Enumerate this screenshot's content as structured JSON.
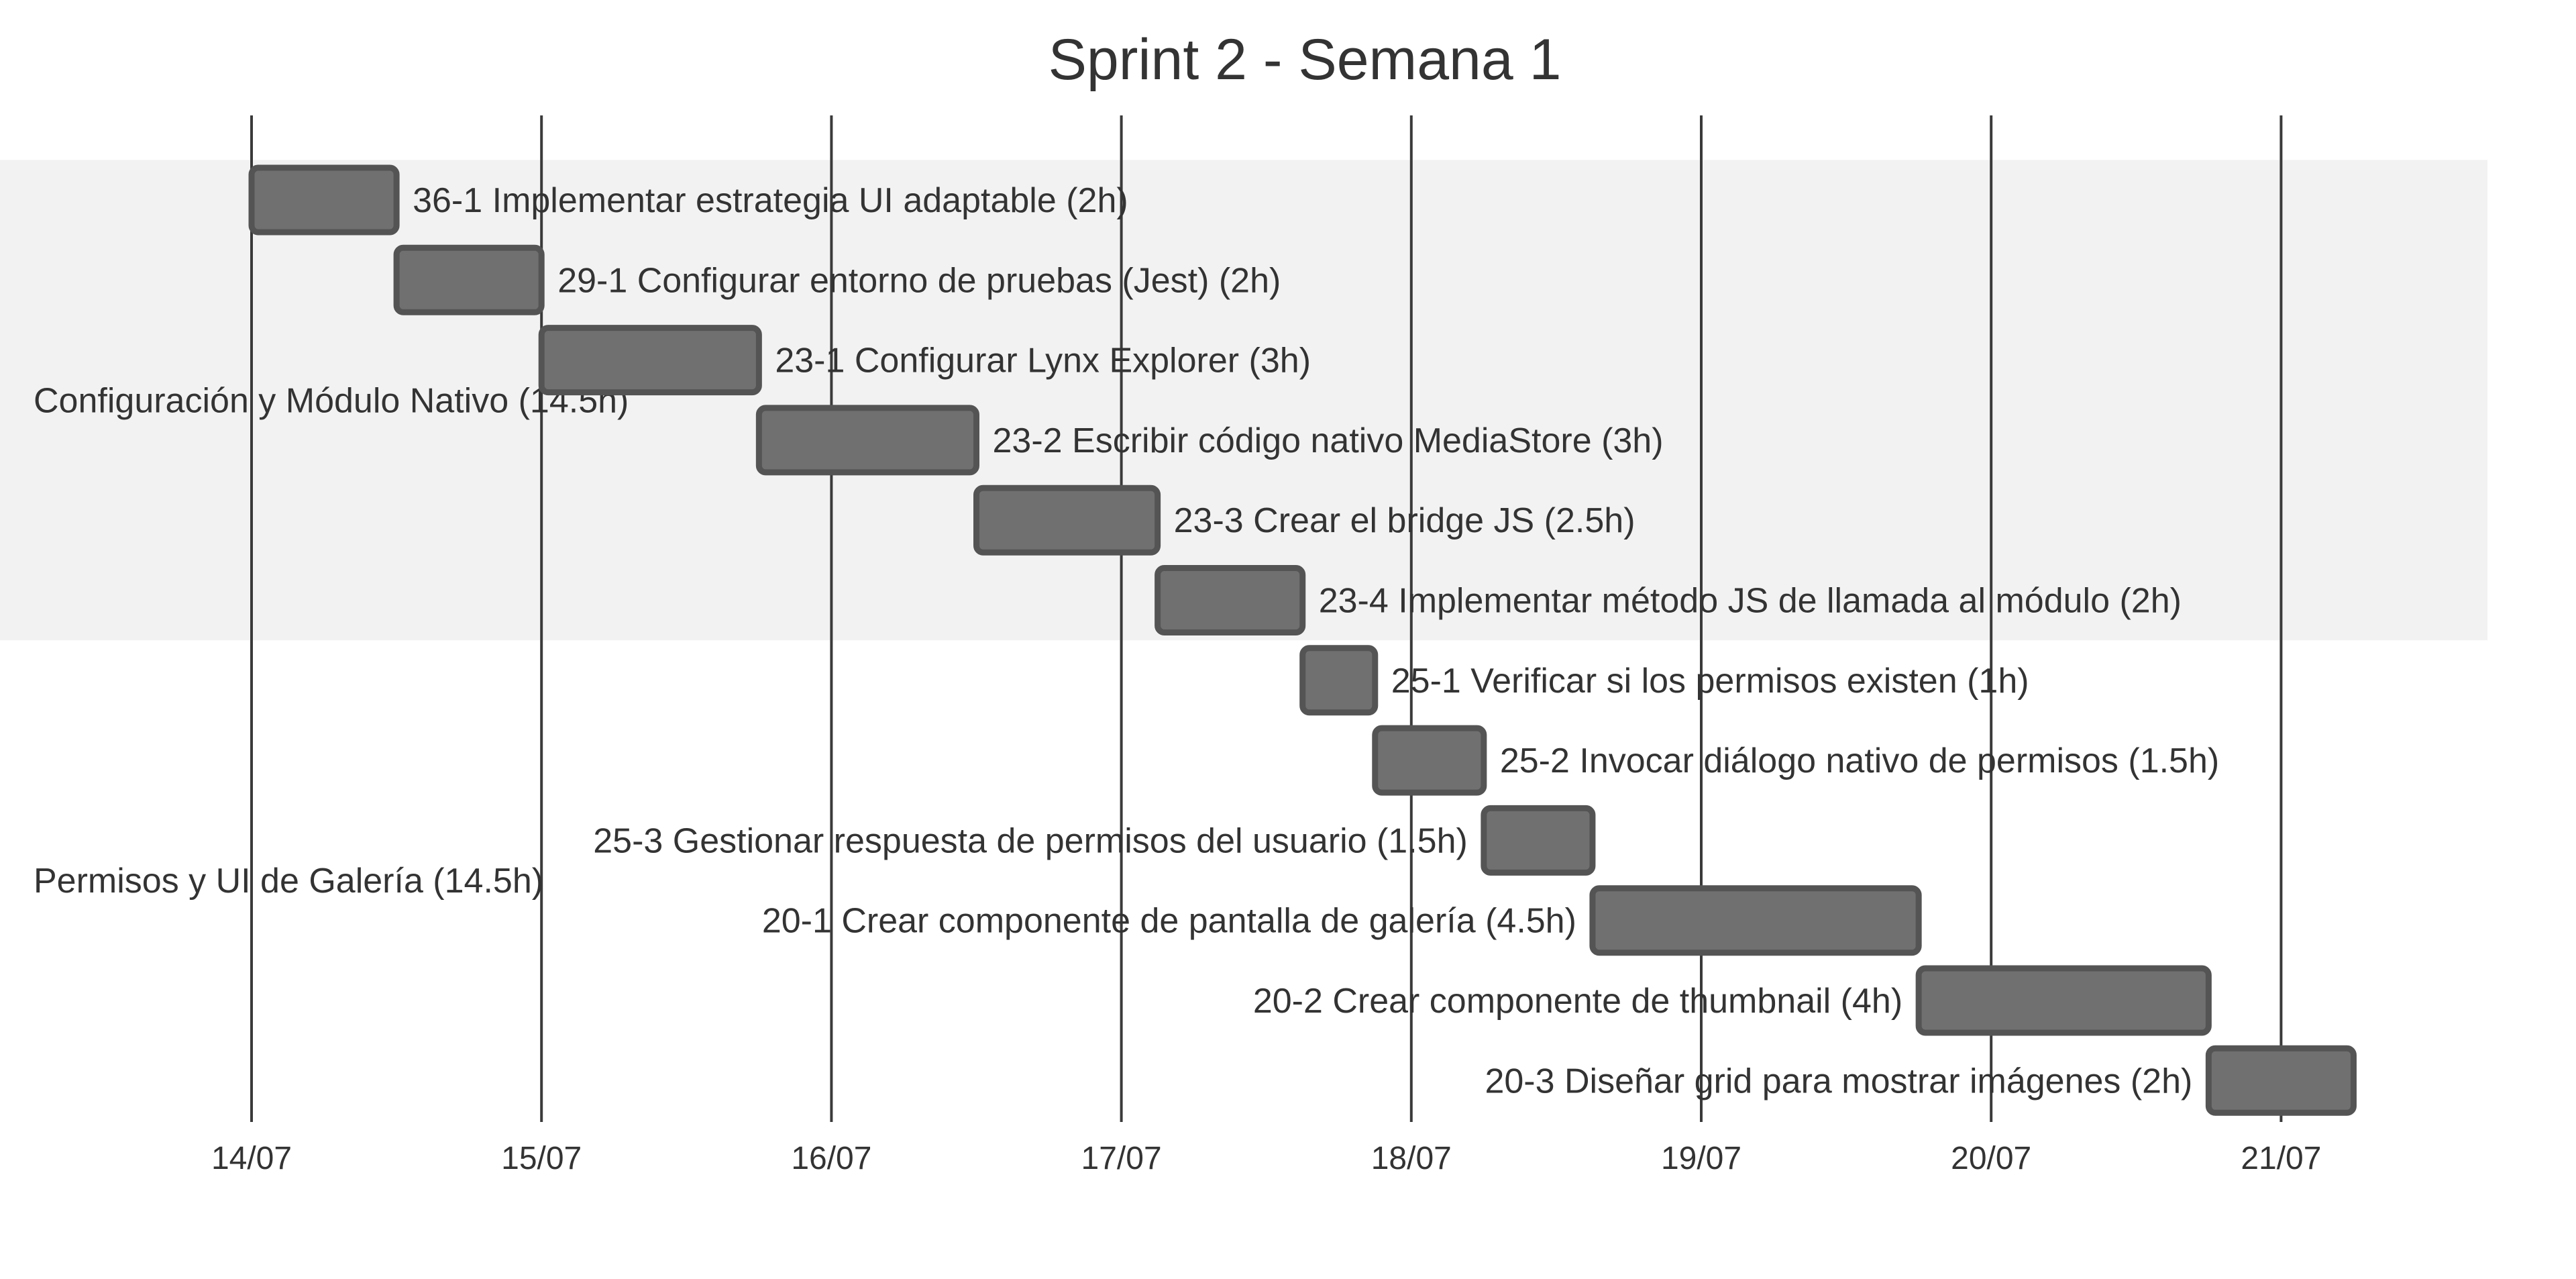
{
  "chart_data": {
    "type": "gantt",
    "title": "Sprint 2 - Semana 1",
    "x_axis": {
      "tick_labels": [
        "14/07",
        "15/07",
        "16/07",
        "17/07",
        "18/07",
        "19/07",
        "20/07",
        "21/07"
      ]
    },
    "sections": [
      {
        "label": "Configuración y Módulo Nativo (14.5h)"
      },
      {
        "label": "Permisos y UI de Galería (14.5h)"
      }
    ],
    "tasks": [
      {
        "section": 0,
        "label": "36-1 Implementar estrategia UI adaptable (2h)",
        "start": 0.0,
        "end": 0.5,
        "label_side": "right"
      },
      {
        "section": 0,
        "label": "29-1 Configurar entorno de pruebas (Jest) (2h)",
        "start": 0.5,
        "end": 1.0,
        "label_side": "right"
      },
      {
        "section": 0,
        "label": "23-1 Configurar Lynx Explorer (3h)",
        "start": 1.0,
        "end": 1.75,
        "label_side": "right"
      },
      {
        "section": 0,
        "label": "23-2 Escribir código nativo MediaStore (3h)",
        "start": 1.75,
        "end": 2.5,
        "label_side": "right"
      },
      {
        "section": 0,
        "label": "23-3 Crear el bridge JS (2.5h)",
        "start": 2.5,
        "end": 3.125,
        "label_side": "right"
      },
      {
        "section": 0,
        "label": "23-4 Implementar método JS de llamada al módulo (2h)",
        "start": 3.125,
        "end": 3.625,
        "label_side": "right"
      },
      {
        "section": 1,
        "label": "25-1 Verificar si los permisos existen (1h)",
        "start": 3.625,
        "end": 3.875,
        "label_side": "right"
      },
      {
        "section": 1,
        "label": "25-2 Invocar diálogo nativo de permisos (1.5h)",
        "start": 3.875,
        "end": 4.25,
        "label_side": "right"
      },
      {
        "section": 1,
        "label": "25-3 Gestionar respuesta de permisos del usuario (1.5h)",
        "start": 4.25,
        "end": 4.625,
        "label_side": "left"
      },
      {
        "section": 1,
        "label": "20-1 Crear componente de pantalla de galería (4.5h)",
        "start": 4.625,
        "end": 5.75,
        "label_side": "left"
      },
      {
        "section": 1,
        "label": "20-2 Crear componente de thumbnail (4h)",
        "start": 5.75,
        "end": 6.75,
        "label_side": "left"
      },
      {
        "section": 1,
        "label": "20-3 Diseñar grid para mostrar imágenes (2h)",
        "start": 6.75,
        "end": 7.25,
        "label_side": "left"
      }
    ],
    "grid": true,
    "colors": {
      "bar_fill": "#707070",
      "bar_stroke": "#545454",
      "section_band": "#f2f2f2",
      "grid_line": "#3a3a3a",
      "text": "#333333"
    }
  }
}
